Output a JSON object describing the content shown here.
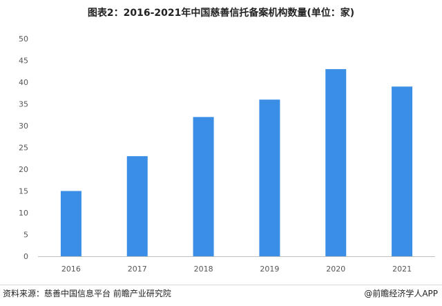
{
  "title": "图表2：2016-2021年中国慈善信托备案机构数量(单位：家)",
  "source": "资料来源：慈善中国信息平台 前瞻产业研究院",
  "credit": "@前瞻经济学人APP",
  "colors": {
    "bar": "#3a8ee6",
    "grid": "#d9d9d9",
    "axis": "#bfbfbf",
    "tick_text": "#555555"
  },
  "chart_data": {
    "type": "bar",
    "title": "图表2：2016-2021年中国慈善信托备案机构数量(单位：家)",
    "categories": [
      "2016",
      "2017",
      "2018",
      "2019",
      "2020",
      "2021"
    ],
    "values": [
      15,
      23,
      32,
      36,
      43,
      39
    ],
    "xlabel": "",
    "ylabel": "",
    "ylim": [
      0,
      50
    ],
    "yticks": [
      0,
      5,
      10,
      15,
      20,
      25,
      30,
      35,
      40,
      45,
      50
    ],
    "grid": false,
    "legend": "none"
  }
}
